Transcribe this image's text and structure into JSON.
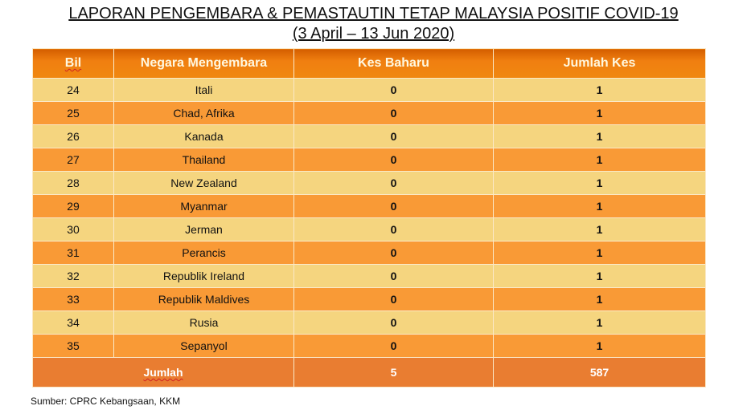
{
  "title": "LAPORAN PENGEMBARA & PEMASTAUTIN TETAP MALAYSIA POSITIF COVID-19",
  "subtitle": "(3 April – 13 Jun 2020)",
  "table": {
    "headers": [
      "Bil",
      "Negara Mengembara",
      "Kes Baharu",
      "Jumlah Kes"
    ],
    "rows": [
      [
        "24",
        "Itali",
        "0",
        "1"
      ],
      [
        "25",
        "Chad, Afrika",
        "0",
        "1"
      ],
      [
        "26",
        "Kanada",
        "0",
        "1"
      ],
      [
        "27",
        "Thailand",
        "0",
        "1"
      ],
      [
        "28",
        "New Zealand",
        "0",
        "1"
      ],
      [
        "29",
        "Myanmar",
        "0",
        "1"
      ],
      [
        "30",
        "Jerman",
        "0",
        "1"
      ],
      [
        "31",
        "Perancis",
        "0",
        "1"
      ],
      [
        "32",
        "Republik Ireland",
        "0",
        "1"
      ],
      [
        "33",
        "Republik Maldives",
        "0",
        "1"
      ],
      [
        "34",
        "Rusia",
        "0",
        "1"
      ],
      [
        "35",
        "Sepanyol",
        "0",
        "1"
      ]
    ],
    "total": {
      "label": "Jumlah",
      "kes_baharu": "5",
      "jumlah_kes": "587"
    }
  },
  "source": "Sumber: CPRC Kebangsaan, KKM",
  "colors": {
    "header": "#f08010",
    "row_light": "#f5d57f",
    "row_dark": "#f99a36",
    "total": "#e97d31"
  }
}
